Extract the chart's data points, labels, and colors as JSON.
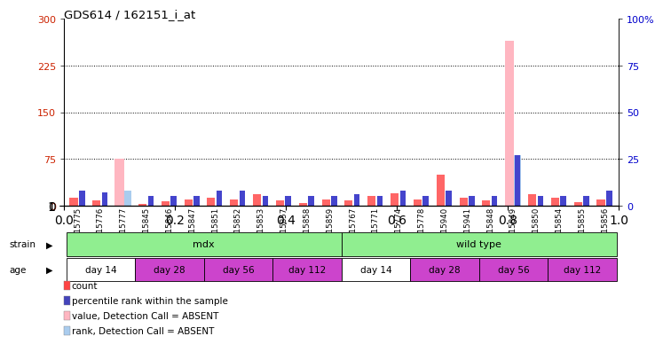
{
  "title": "GDS614 / 162151_i_at",
  "samples": [
    "GSM15775",
    "GSM15776",
    "GSM15777",
    "GSM15845",
    "GSM15846",
    "GSM15847",
    "GSM15851",
    "GSM15852",
    "GSM15853",
    "GSM15857",
    "GSM15858",
    "GSM15859",
    "GSM15767",
    "GSM15771",
    "GSM15774",
    "GSM15778",
    "GSM15940",
    "GSM15941",
    "GSM15848",
    "GSM15849",
    "GSM15850",
    "GSM15854",
    "GSM15855",
    "GSM15856"
  ],
  "count_values": [
    12,
    8,
    0,
    3,
    7,
    10,
    12,
    10,
    18,
    8,
    4,
    10,
    8,
    15,
    20,
    10,
    50,
    12,
    8,
    0,
    18,
    12,
    5,
    10
  ],
  "rank_values": [
    8,
    7,
    0,
    5,
    5,
    5,
    8,
    8,
    5,
    5,
    5,
    5,
    6,
    5,
    8,
    5,
    8,
    5,
    5,
    27,
    5,
    5,
    5,
    8
  ],
  "absent_count_values": [
    0,
    0,
    75,
    0,
    0,
    0,
    0,
    0,
    0,
    0,
    0,
    0,
    0,
    0,
    0,
    0,
    0,
    0,
    0,
    265,
    0,
    0,
    0,
    0
  ],
  "absent_rank_values": [
    0,
    0,
    8,
    0,
    0,
    0,
    0,
    0,
    0,
    0,
    0,
    0,
    0,
    0,
    0,
    0,
    0,
    0,
    0,
    27,
    0,
    0,
    0,
    0
  ],
  "ylim_left": [
    0,
    300
  ],
  "ylim_right": [
    0,
    100
  ],
  "yticks_left": [
    0,
    75,
    150,
    225,
    300
  ],
  "yticks_right": [
    0,
    25,
    50,
    75,
    100
  ],
  "yticklabels_left": [
    "0",
    "75",
    "150",
    "225",
    "300"
  ],
  "yticklabels_right": [
    "0",
    "25",
    "50",
    "75",
    "100%"
  ],
  "strain_groups": [
    {
      "label": "mdx",
      "start": 0,
      "end": 12,
      "color": "#90EE90"
    },
    {
      "label": "wild type",
      "start": 12,
      "end": 24,
      "color": "#90EE90"
    }
  ],
  "age_groups": [
    {
      "label": "day 14",
      "start": 0,
      "end": 3,
      "color": "#FFFFFF"
    },
    {
      "label": "day 28",
      "start": 3,
      "end": 6,
      "color": "#CC44CC"
    },
    {
      "label": "day 56",
      "start": 6,
      "end": 9,
      "color": "#CC44CC"
    },
    {
      "label": "day 112",
      "start": 9,
      "end": 12,
      "color": "#CC44CC"
    },
    {
      "label": "day 14",
      "start": 12,
      "end": 15,
      "color": "#FFFFFF"
    },
    {
      "label": "day 28",
      "start": 15,
      "end": 18,
      "color": "#CC44CC"
    },
    {
      "label": "day 56",
      "start": 18,
      "end": 21,
      "color": "#CC44CC"
    },
    {
      "label": "day 112",
      "start": 21,
      "end": 24,
      "color": "#CC44CC"
    }
  ],
  "count_color": "#FF6666",
  "rank_color": "#4444CC",
  "absent_count_color": "#FFB6C1",
  "absent_rank_color": "#AACCEE",
  "bg_color": "#FFFFFF",
  "legend_items": [
    {
      "label": "count",
      "color": "#FF4444"
    },
    {
      "label": "percentile rank within the sample",
      "color": "#4444BB"
    },
    {
      "label": "value, Detection Call = ABSENT",
      "color": "#FFB6C1"
    },
    {
      "label": "rank, Detection Call = ABSENT",
      "color": "#AACCEE"
    }
  ]
}
